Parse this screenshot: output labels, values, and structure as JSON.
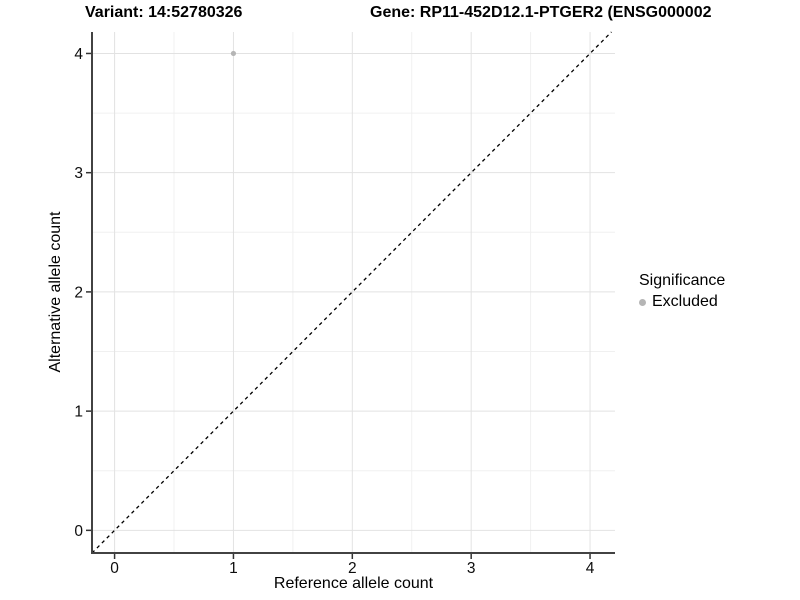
{
  "chart_data": {
    "type": "scatter",
    "titles": [
      "Variant: 14:52780326",
      "Gene: RP11-452D12.1-PTGER2 (ENSG000002"
    ],
    "xlabel": "Reference allele count",
    "ylabel": "Alternative allele count",
    "xlim": [
      -0.19,
      4.21
    ],
    "ylim": [
      -0.19,
      4.18
    ],
    "x_ticks": [
      0,
      1,
      2,
      3,
      4
    ],
    "x_tick_labels": [
      "0",
      "1",
      "2",
      "3",
      "4"
    ],
    "y_ticks": [
      0,
      1,
      2,
      3,
      4
    ],
    "y_tick_labels": [
      "0",
      "1",
      "2",
      "3",
      "4"
    ],
    "x_minor": [
      0.5,
      1.5,
      2.5,
      3.5
    ],
    "y_minor": [
      0.5,
      1.5,
      2.5,
      3.5
    ],
    "grid": true,
    "points": [
      {
        "x": 1,
        "y": 4,
        "series": "Excluded"
      }
    ],
    "identity_line": {
      "slope": 1,
      "intercept": 0,
      "style": "dashed",
      "color": "#000000"
    },
    "legend": {
      "position": "right",
      "title": "Significance",
      "items": [
        {
          "label": "Excluded",
          "color": "#b5b5b5"
        }
      ]
    },
    "colors": {
      "point": "#b5b5b5",
      "grid_major": "#e2e2e2",
      "grid_minor": "#f0f0f0",
      "axis": "#424242",
      "tick": "#333333",
      "text": "#0d0d0d"
    }
  }
}
